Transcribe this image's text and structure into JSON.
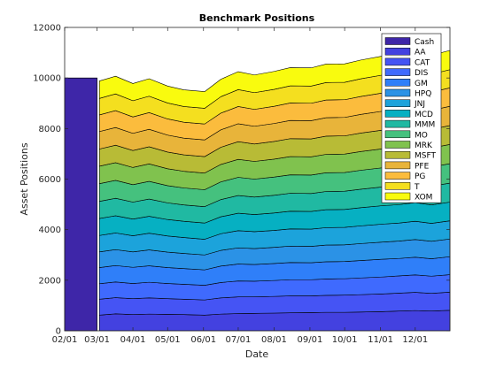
{
  "chart_data": {
    "type": "area",
    "title": "Benchmark Positions",
    "xlabel": "Date",
    "ylabel": "Asset Positions",
    "xlim": [
      "2014-02-01",
      "2014-12-31"
    ],
    "ylim": [
      0,
      12000
    ],
    "yticks": [
      0,
      2000,
      4000,
      6000,
      8000,
      10000,
      12000
    ],
    "xtick_labels": [
      "02/01",
      "03/01",
      "04/01",
      "05/01",
      "06/01",
      "07/01",
      "08/01",
      "09/01",
      "10/01",
      "11/01",
      "12/01"
    ],
    "x": [
      "2014-03-03",
      "2014-03-17",
      "2014-04-01",
      "2014-04-15",
      "2014-05-01",
      "2014-05-15",
      "2014-06-02",
      "2014-06-16",
      "2014-07-01",
      "2014-07-15",
      "2014-08-01",
      "2014-08-15",
      "2014-09-02",
      "2014-09-15",
      "2014-10-01",
      "2014-10-15",
      "2014-11-03",
      "2014-11-17",
      "2014-12-01",
      "2014-12-15",
      "2014-12-31"
    ],
    "grid": false,
    "legend_position": "top-right",
    "cash": {
      "name": "Cash",
      "color": "#3e26a8",
      "x_start": "2014-02-01",
      "x_end": "2014-03-01",
      "value": 10000
    },
    "series": [
      {
        "name": "AA",
        "color": "#4341e0",
        "values": [
          620,
          670,
          640,
          660,
          650,
          640,
          620,
          660,
          680,
          690,
          700,
          710,
          720,
          730,
          730,
          740,
          760,
          780,
          800,
          780,
          810
        ]
      },
      {
        "name": "CAT",
        "color": "#4554f4",
        "values": [
          630,
          640,
          630,
          640,
          620,
          610,
          600,
          640,
          660,
          650,
          660,
          670,
          660,
          670,
          680,
          690,
          700,
          710,
          720,
          700,
          720
        ]
      },
      {
        "name": "DIS",
        "color": "#3f6afe",
        "values": [
          610,
          620,
          600,
          620,
          600,
          590,
          580,
          610,
          630,
          620,
          630,
          640,
          640,
          650,
          650,
          660,
          670,
          680,
          690,
          680,
          690
        ]
      },
      {
        "name": "GM",
        "color": "#2f7ff9",
        "values": [
          640,
          650,
          640,
          650,
          630,
          620,
          610,
          650,
          670,
          660,
          670,
          680,
          670,
          680,
          680,
          690,
          700,
          690,
          700,
          690,
          710
        ]
      },
      {
        "name": "HPQ",
        "color": "#2b92e6",
        "values": [
          620,
          630,
          610,
          630,
          610,
          600,
          590,
          620,
          640,
          630,
          640,
          650,
          650,
          660,
          660,
          670,
          680,
          690,
          700,
          690,
          700
        ]
      },
      {
        "name": "JNJ",
        "color": "#1ca3db",
        "values": [
          650,
          660,
          640,
          660,
          640,
          630,
          620,
          660,
          680,
          670,
          670,
          680,
          680,
          690,
          690,
          700,
          710,
          710,
          720,
          710,
          720
        ]
      },
      {
        "name": "MCD",
        "color": "#06b0c2",
        "values": [
          670,
          680,
          660,
          670,
          650,
          640,
          640,
          670,
          690,
          680,
          690,
          700,
          700,
          710,
          710,
          720,
          730,
          730,
          740,
          730,
          740
        ]
      },
      {
        "name": "MMM",
        "color": "#20b9a2",
        "values": [
          680,
          690,
          670,
          680,
          660,
          650,
          650,
          680,
          700,
          690,
          700,
          710,
          710,
          720,
          720,
          730,
          740,
          740,
          750,
          740,
          750
        ]
      },
      {
        "name": "MO",
        "color": "#45c17e",
        "values": [
          700,
          710,
          690,
          700,
          680,
          670,
          670,
          700,
          720,
          710,
          720,
          730,
          730,
          740,
          740,
          750,
          760,
          760,
          770,
          760,
          770
        ]
      },
      {
        "name": "MRK",
        "color": "#80c24e",
        "values": [
          690,
          700,
          680,
          690,
          670,
          660,
          660,
          690,
          710,
          700,
          710,
          720,
          720,
          730,
          730,
          740,
          750,
          750,
          760,
          750,
          760
        ]
      },
      {
        "name": "MSFT",
        "color": "#b8bb36",
        "values": [
          680,
          690,
          670,
          680,
          660,
          650,
          650,
          680,
          700,
          690,
          700,
          710,
          710,
          720,
          720,
          730,
          740,
          740,
          750,
          740,
          750
        ]
      },
      {
        "name": "PFE",
        "color": "#e8b43a",
        "values": [
          690,
          700,
          680,
          690,
          670,
          660,
          660,
          690,
          710,
          700,
          710,
          720,
          720,
          730,
          730,
          740,
          750,
          750,
          760,
          750,
          760
        ]
      },
      {
        "name": "PG",
        "color": "#fbbc3d",
        "values": [
          660,
          670,
          650,
          660,
          640,
          630,
          630,
          660,
          680,
          670,
          680,
          690,
          690,
          700,
          700,
          710,
          720,
          720,
          730,
          720,
          730
        ]
      },
      {
        "name": "T",
        "color": "#f4df1f",
        "values": [
          650,
          660,
          640,
          650,
          630,
          620,
          620,
          650,
          670,
          660,
          670,
          680,
          680,
          690,
          690,
          700,
          710,
          710,
          720,
          710,
          720
        ]
      },
      {
        "name": "XOM",
        "color": "#f9fb0e",
        "values": [
          690,
          700,
          680,
          690,
          670,
          660,
          660,
          690,
          710,
          700,
          710,
          720,
          720,
          730,
          730,
          740,
          750,
          750,
          760,
          750,
          760
        ]
      }
    ]
  }
}
